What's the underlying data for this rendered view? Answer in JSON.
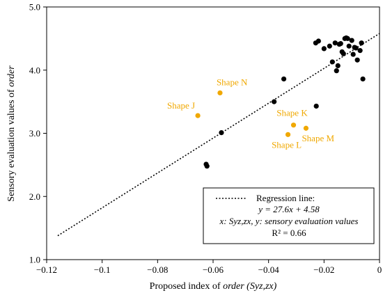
{
  "chart_data": {
    "type": "scatter",
    "xlabel_prefix": "Proposed index of ",
    "xlabel_italic": "order (Syz,zx)",
    "ylabel_prefix": "Sensory evaluation values of ",
    "ylabel_italic": "order",
    "xlim": [
      -0.12,
      0
    ],
    "ylim": [
      1.0,
      5.0
    ],
    "x_ticks": [
      -0.12,
      -0.1,
      -0.08,
      -0.06,
      -0.04,
      -0.02,
      0
    ],
    "x_tick_labels": [
      "−0.12",
      "−0.1",
      "−0.08",
      "−0.06",
      "−0.04",
      "−0.02",
      "0"
    ],
    "y_ticks": [
      1.0,
      2.0,
      3.0,
      4.0,
      5.0
    ],
    "y_tick_labels": [
      "1.0",
      "2.0",
      "3.0",
      "4.0",
      "5.0"
    ],
    "grid": false,
    "colors": {
      "black_points": "#000000",
      "highlight_points": "#f0a800",
      "regression": "#000000"
    },
    "series": [
      {
        "color": "#000000",
        "points": [
          [
            -0.0625,
            2.51
          ],
          [
            -0.0622,
            2.48
          ],
          [
            -0.057,
            3.01
          ],
          [
            -0.038,
            3.5
          ],
          [
            -0.0345,
            3.86
          ],
          [
            -0.0228,
            3.43
          ],
          [
            -0.023,
            4.43
          ],
          [
            -0.022,
            4.46
          ],
          [
            -0.02,
            4.34
          ],
          [
            -0.018,
            4.38
          ],
          [
            -0.017,
            4.13
          ],
          [
            -0.016,
            4.43
          ],
          [
            -0.0155,
            3.99
          ],
          [
            -0.015,
            4.07
          ],
          [
            -0.0145,
            4.41
          ],
          [
            -0.014,
            4.42
          ],
          [
            -0.0135,
            4.29
          ],
          [
            -0.013,
            4.26
          ],
          [
            -0.0125,
            4.5
          ],
          [
            -0.012,
            4.51
          ],
          [
            -0.0115,
            4.5
          ],
          [
            -0.011,
            4.38
          ],
          [
            -0.01,
            4.47
          ],
          [
            -0.0095,
            4.25
          ],
          [
            -0.009,
            4.36
          ],
          [
            -0.0085,
            4.35
          ],
          [
            -0.008,
            4.16
          ],
          [
            -0.007,
            4.31
          ],
          [
            -0.0065,
            4.43
          ],
          [
            -0.006,
            3.86
          ]
        ]
      },
      {
        "color": "#f0a800",
        "points": [
          {
            "x": -0.0655,
            "y": 3.28,
            "label": "Shape J"
          },
          {
            "x": -0.0575,
            "y": 3.64,
            "label": "Shape N"
          },
          {
            "x": -0.031,
            "y": 3.13,
            "label": "Shape K"
          },
          {
            "x": -0.033,
            "y": 2.98,
            "label": "Shape L"
          },
          {
            "x": -0.0265,
            "y": 3.08,
            "label": "Shape M"
          }
        ]
      }
    ],
    "regression": {
      "slope": 27.6,
      "intercept": 4.58,
      "x_start": -0.116,
      "x_end": 0
    },
    "legend": {
      "position": "bottom-right",
      "line1": "Regression line:",
      "line2": "y = 27.6x + 4.58",
      "line3": "x: Syz,zx, y: sensory evaluation values",
      "line4": "R² = 0.66"
    }
  }
}
